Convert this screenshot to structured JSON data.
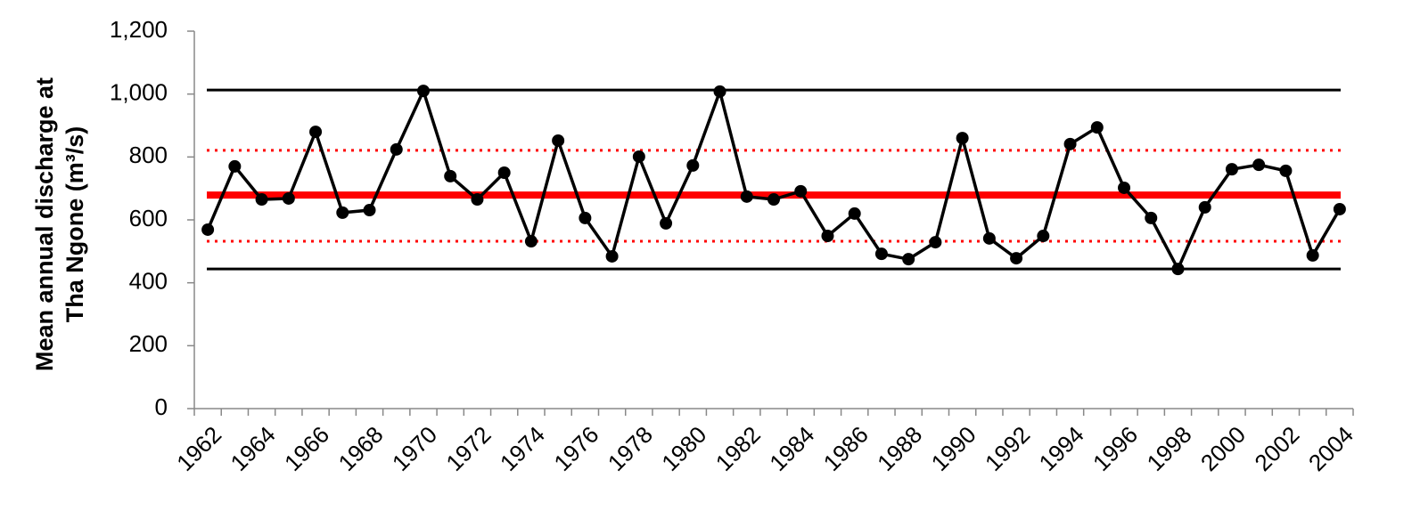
{
  "chart_data": {
    "type": "line",
    "y_label_lines": [
      "Mean annual  discharge  at",
      "Tha Ngone  (m³/s)"
    ],
    "categories": [
      "1962",
      null,
      "1964",
      null,
      "1966",
      null,
      "1968",
      null,
      "1970",
      null,
      "1972",
      null,
      "1974",
      null,
      "1976",
      null,
      "1978",
      null,
      "1980",
      null,
      "1982",
      null,
      "1984",
      null,
      "1986",
      null,
      "1988",
      null,
      "1990",
      null,
      "1992",
      null,
      "1994",
      null,
      "1996",
      null,
      "1998",
      null,
      "2000",
      null,
      "2002",
      null,
      "2004"
    ],
    "values": [
      569,
      770,
      665,
      668,
      880,
      623,
      631,
      824,
      1010,
      739,
      665,
      750,
      532,
      852,
      606,
      484,
      801,
      589,
      773,
      1008,
      674,
      665,
      691,
      549,
      620,
      492,
      475,
      529,
      860,
      541,
      478,
      549,
      841,
      894,
      702,
      606,
      444,
      640,
      761,
      775,
      756,
      487,
      634
    ],
    "color": "#000000",
    "reference_lines": [
      {
        "value": 1013,
        "color": "#000000",
        "dash": "solid"
      },
      {
        "value": 444,
        "color": "#000000",
        "dash": "solid"
      },
      {
        "value": 821,
        "color": "#ff0000",
        "dash": "dotted"
      },
      {
        "value": 532,
        "color": "#ff0000",
        "dash": "dotted"
      },
      {
        "value": 679,
        "color": "#ff0000",
        "dash": "thick"
      }
    ],
    "ylim": [
      0,
      1200
    ],
    "yticks": [
      0,
      200,
      400,
      600,
      800,
      {
        "value": 1000,
        "label": "1,000"
      },
      {
        "value": 1200,
        "label": "1,200"
      }
    ],
    "grid": false
  }
}
